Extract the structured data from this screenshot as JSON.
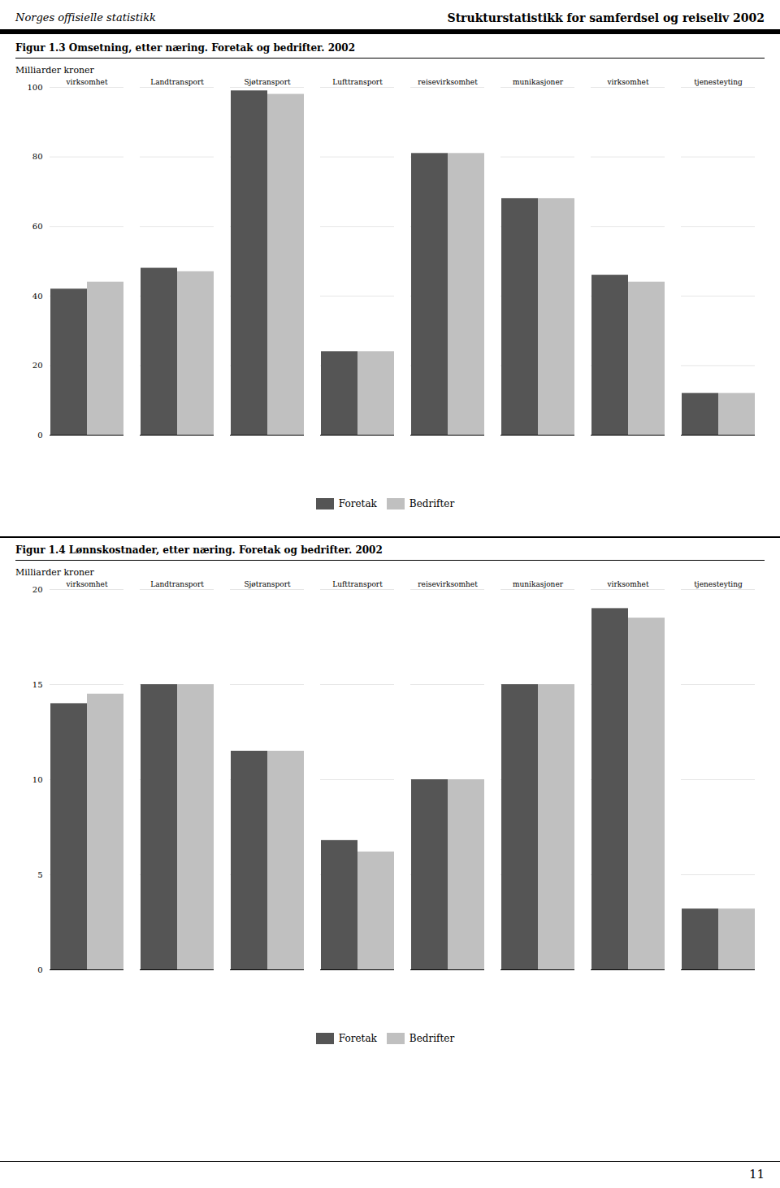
{
  "annotations": [
    "Norges offisielle statistikk",
    "Strukturstatistikk for samferdsel og reiseliv 2002",
    "11"
  ],
  "chart_data": [
    {
      "type": "bar",
      "title": "Figur 1.3   Omsetning, etter næring. Foretak og bedrifter. 2002",
      "ylabel": "Milliarder kroner",
      "categories": [
        "Hotell- og\nrestaurant-\nvirksomhet",
        "Landtransport",
        "Sjøtransport",
        "Lufttransport",
        "Tjenester tilknyttet\ntransport og\nreisevirksomhet",
        "Post og\ntelekom-\nmunikasjoner",
        "Databe-\nhandlings-\nvirksomhet",
        "Kulturell\ntjenesteyting"
      ],
      "series": [
        {
          "name": "Foretak",
          "color": "#555555",
          "values": [
            42,
            48,
            99,
            24,
            81,
            68,
            46,
            12
          ]
        },
        {
          "name": "Bedrifter",
          "color": "#c0c0c0",
          "values": [
            44,
            47,
            98,
            24,
            81,
            68,
            44,
            12
          ]
        }
      ],
      "ylim": [
        0,
        100
      ],
      "yticks": [
        0,
        20,
        40,
        60,
        80,
        100
      ],
      "grid": true,
      "legend": "bottom"
    },
    {
      "type": "bar",
      "title": "Figur 1.4   Lønnskostnader, etter næring. Foretak og bedrifter. 2002",
      "ylabel": "Milliarder kroner",
      "categories": [
        "Hotell- og\nrestaurant-\nvirksomhet",
        "Landtransport",
        "Sjøtransport",
        "Lufttransport",
        "Tjenester\ntilknyttet\ntransport og\nreisevirksomhet",
        "Post og telekom-\nmunikasjoner",
        "Databe-\nhandlings-\nvirksomhet",
        "Kulturell\ntjenesteyting"
      ],
      "series": [
        {
          "name": "Foretak",
          "color": "#555555",
          "values": [
            14.0,
            15.0,
            11.5,
            6.8,
            10.0,
            15.0,
            19.0,
            3.2
          ]
        },
        {
          "name": "Bedrifter",
          "color": "#c0c0c0",
          "values": [
            14.5,
            15.0,
            11.5,
            6.2,
            10.0,
            15.0,
            18.5,
            3.2
          ]
        }
      ],
      "ylim": [
        0,
        20
      ],
      "yticks": [
        0,
        5,
        10,
        15,
        20
      ],
      "grid": true,
      "legend": "bottom"
    }
  ]
}
